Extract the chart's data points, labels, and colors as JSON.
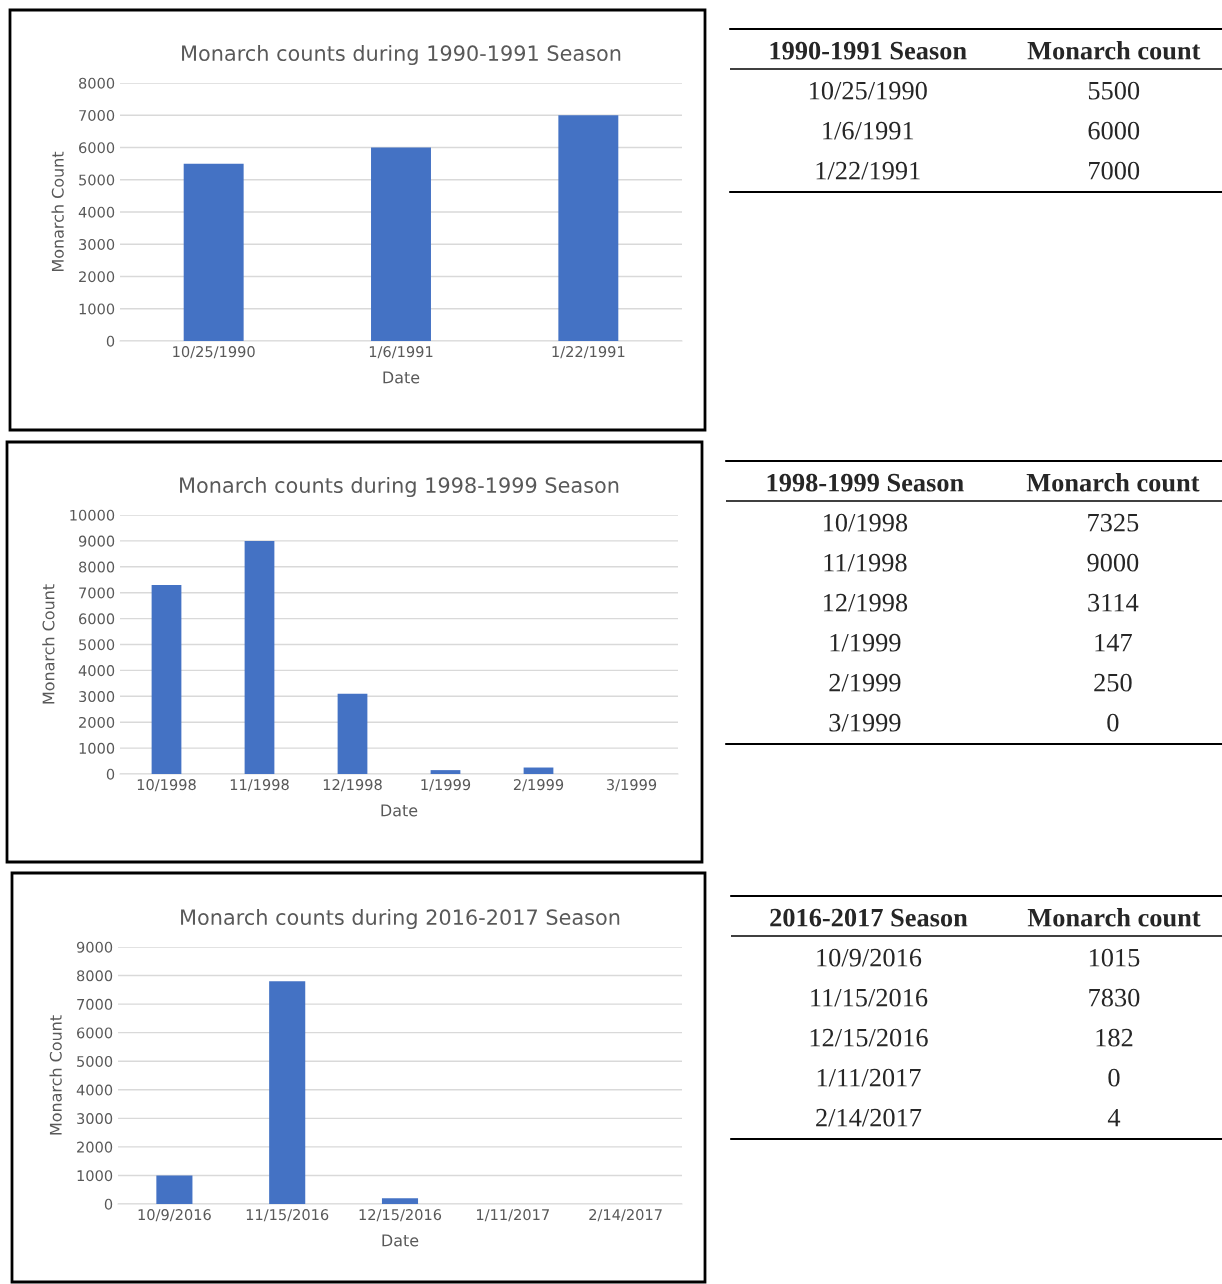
{
  "chart_data": [
    {
      "type": "bar",
      "title": "Monarch counts during 1990-1991 Season",
      "xlabel": "Date",
      "ylabel": "Monarch Count",
      "categories": [
        "10/25/1990",
        "1/6/1991",
        "1/22/1991"
      ],
      "values": [
        5500,
        6000,
        7000
      ],
      "color": "#4472c4",
      "ylim": [
        0,
        8000
      ],
      "yticks": [
        0,
        1000,
        2000,
        3000,
        4000,
        5000,
        6000,
        7000,
        8000
      ],
      "grid": "y"
    },
    {
      "type": "other",
      "annotations": [
        "1990-1991 Season",
        "Monarch count",
        "10/25/1990",
        "5500",
        "1/6/1991",
        "6000",
        "1/22/1991",
        "7000"
      ]
    },
    {
      "type": "bar",
      "title": "Monarch counts during 1998-1999 Season",
      "xlabel": "Date",
      "ylabel": "Monarch Count",
      "categories": [
        "10/1998",
        "11/1998",
        "12/1998",
        "1/1999",
        "2/1999",
        "3/1999"
      ],
      "values": [
        7300,
        9000,
        3100,
        150,
        250,
        0
      ],
      "color": "#4472c4",
      "ylim": [
        0,
        10000
      ],
      "yticks": [
        0,
        1000,
        2000,
        3000,
        4000,
        5000,
        6000,
        7000,
        8000,
        9000,
        10000
      ],
      "grid": "y"
    },
    {
      "type": "other",
      "annotations": [
        "1998-1999 Season",
        "Monarch count",
        "10/1998",
        "7325",
        "11/1998",
        "9000",
        "12/1998",
        "3114",
        "1/1999",
        "147",
        "2/1999",
        "250",
        "3/1999",
        "0"
      ]
    },
    {
      "type": "bar",
      "title": "Monarch counts during 2016-2017 Season",
      "xlabel": "Date",
      "ylabel": "Monarch Count",
      "categories": [
        "10/9/2016",
        "11/15/2016",
        "12/15/2016",
        "1/11/2017",
        "2/14/2017"
      ],
      "values": [
        1000,
        7800,
        200,
        0,
        0
      ],
      "color": "#4472c4",
      "ylim": [
        0,
        9000
      ],
      "yticks": [
        0,
        1000,
        2000,
        3000,
        4000,
        5000,
        6000,
        7000,
        8000,
        9000
      ],
      "grid": "y"
    },
    {
      "type": "other",
      "annotations": [
        "2016-2017 Season",
        "Monarch count",
        "10/9/2016",
        "1015",
        "11/15/2016",
        "7830",
        "12/15/2016",
        "182",
        "1/11/2017",
        "0",
        "2/14/2017",
        "4"
      ]
    }
  ]
}
